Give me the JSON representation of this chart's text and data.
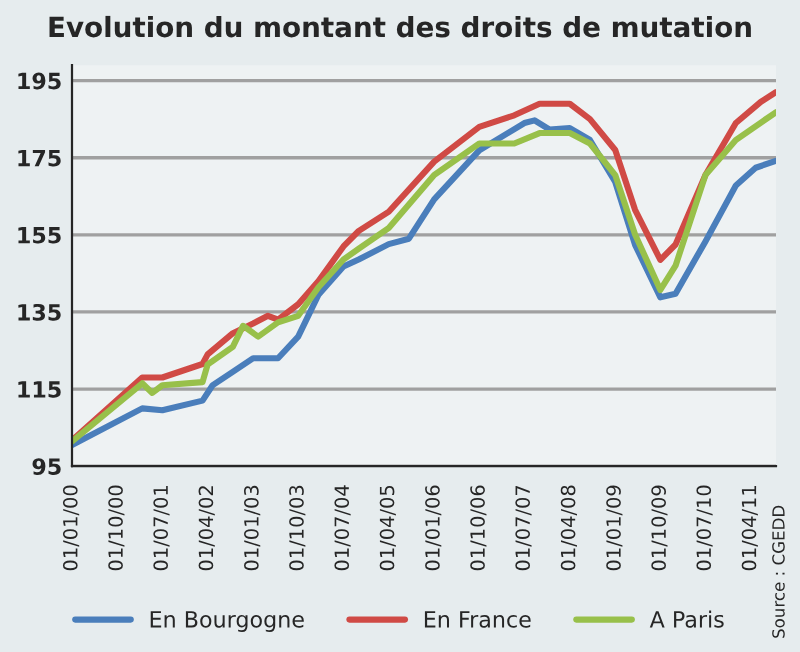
{
  "chart_data": {
    "type": "line",
    "title": "Evolution du montant des droits de mutation",
    "series": [
      {
        "name": "En Bourgogne",
        "color": "#4a7ebb",
        "x": [
          "2000-01",
          "2001-03",
          "2001-07",
          "2002-03",
          "2002-05",
          "2002-09",
          "2003-01",
          "2003-04",
          "2003-06",
          "2003-10",
          "2004-02",
          "2004-07",
          "2004-10",
          "2005-04",
          "2005-08",
          "2006-01",
          "2006-10",
          "2007-07",
          "2007-09",
          "2007-12",
          "2008-04",
          "2008-08",
          "2009-01",
          "2009-05",
          "2009-10",
          "2010-01",
          "2010-07",
          "2011-01",
          "2011-05",
          "2011-09"
        ],
        "values": [
          100.5,
          110,
          109.5,
          112,
          116,
          119.5,
          123,
          123,
          123,
          128.6,
          139.5,
          146.8,
          148.6,
          152.6,
          154,
          164.2,
          176.9,
          184,
          184.7,
          182.3,
          182.7,
          179.6,
          168.7,
          152.4,
          138.8,
          139.7,
          153.3,
          167.8,
          172.4,
          174.2
        ]
      },
      {
        "name": "En France",
        "color": "#d04a45",
        "x": [
          "2000-01",
          "2001-03",
          "2001-07",
          "2002-03",
          "2002-04",
          "2002-09",
          "2003-01",
          "2003-04",
          "2003-06",
          "2003-10",
          "2004-02",
          "2004-07",
          "2004-10",
          "2005-04",
          "2006-01",
          "2006-10",
          "2007-05",
          "2007-10",
          "2008-04",
          "2008-08",
          "2009-01",
          "2009-05",
          "2009-10",
          "2010-01",
          "2010-07",
          "2011-01",
          "2011-06",
          "2011-09"
        ],
        "values": [
          101.7,
          118,
          118,
          121.5,
          124,
          129.5,
          132,
          134,
          133,
          137,
          143,
          152,
          156,
          161,
          174,
          183,
          186,
          189,
          189,
          185,
          177,
          161.5,
          148.5,
          152.5,
          170.5,
          184,
          189.5,
          192
        ]
      },
      {
        "name": "A Paris",
        "color": "#98c04a",
        "x": [
          "2000-01",
          "2001-03",
          "2001-05",
          "2001-07",
          "2002-03",
          "2002-04",
          "2002-09",
          "2002-11",
          "2003-02",
          "2003-06",
          "2003-10",
          "2004-02",
          "2004-07",
          "2004-10",
          "2005-04",
          "2006-01",
          "2006-10",
          "2007-05",
          "2007-10",
          "2008-04",
          "2008-08",
          "2009-01",
          "2009-05",
          "2009-10",
          "2010-01",
          "2010-07",
          "2011-01",
          "2011-06",
          "2011-09"
        ],
        "values": [
          101.4,
          116.5,
          114,
          116,
          116.8,
          121.4,
          126,
          131.4,
          128.6,
          132.3,
          134,
          141.4,
          148.6,
          151.4,
          156.8,
          170.5,
          178.7,
          178.7,
          181.4,
          181.4,
          178.7,
          170.5,
          155.1,
          140.7,
          147,
          170.5,
          179.6,
          184.1,
          186.8
        ]
      }
    ],
    "xlim": [
      "2000-01",
      "2011-09"
    ],
    "xticks": [
      {
        "value": "2000-01-01",
        "label": "01/01/00"
      },
      {
        "value": "2000-10-01",
        "label": "01/10/00"
      },
      {
        "value": "2001-07-01",
        "label": "01/07/01"
      },
      {
        "value": "2002-04-01",
        "label": "01/04/02"
      },
      {
        "value": "2003-01-01",
        "label": "01/01/03"
      },
      {
        "value": "2003-10-01",
        "label": "01/10/03"
      },
      {
        "value": "2004-07-01",
        "label": "01/07/04"
      },
      {
        "value": "2005-04-01",
        "label": "01/04/05"
      },
      {
        "value": "2006-01-01",
        "label": "01/01/06"
      },
      {
        "value": "2006-10-01",
        "label": "01/10/06"
      },
      {
        "value": "2007-07-01",
        "label": "01/07/07"
      },
      {
        "value": "2008-04-01",
        "label": "01/04/08"
      },
      {
        "value": "2009-01-01",
        "label": "01/01/09"
      },
      {
        "value": "2009-10-01",
        "label": "01/10/09"
      },
      {
        "value": "2010-07-01",
        "label": "01/07/10"
      },
      {
        "value": "2011-04-01",
        "label": "01/04/11"
      }
    ],
    "ylim": [
      95,
      199
    ],
    "yticks": [
      95,
      115,
      135,
      155,
      175,
      195
    ],
    "grid": "y",
    "legend": "bottom",
    "line_style": "solid",
    "annotations": [
      "Source : CGEDD"
    ]
  }
}
